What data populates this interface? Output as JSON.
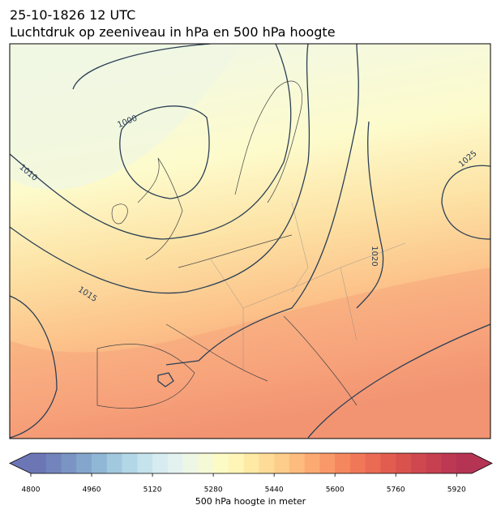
{
  "header": {
    "title": "25-10-1826 12 UTC",
    "subtitle": "Luchtdruk op zeeniveau in hPa en 500 hPa hoogte"
  },
  "map": {
    "contour_labels": [
      1000,
      1010,
      1015,
      1020,
      1025
    ]
  },
  "colorbar": {
    "label": "500 hPa hoogte in meter",
    "lim": [
      4800,
      5960
    ],
    "ticks": [
      4800,
      4960,
      5120,
      5280,
      5440,
      5600,
      5760,
      5920
    ],
    "colors": [
      "#6d76b5",
      "#7284bb",
      "#7a94c4",
      "#84a6cc",
      "#91b7d6",
      "#a1c8de",
      "#b3d7e6",
      "#c5e3ec",
      "#d6ecf0",
      "#e4f2ef",
      "#eef6e6",
      "#f6f9d6",
      "#fcfbc6",
      "#fef5b6",
      "#fee9a5",
      "#fedc98",
      "#fdcd8b",
      "#fdbc7e",
      "#fcaa72",
      "#f99868",
      "#f5875f",
      "#f07858",
      "#ea6a53",
      "#e25d4f",
      "#d9524e",
      "#cf484f",
      "#c64050",
      "#bd3852",
      "#b53454"
    ]
  }
}
